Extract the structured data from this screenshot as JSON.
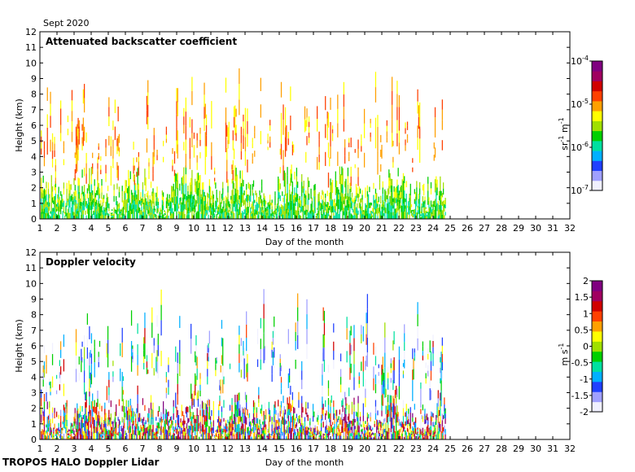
{
  "header": {
    "month_label": "Sept 2020"
  },
  "footer": {
    "instrument_label": "TROPOS HALO Doppler Lidar"
  },
  "chart_data": [
    {
      "type": "heatmap",
      "title": "Attenuated backscatter coefficient",
      "xlabel": "Day of the month",
      "ylabel": "Height (km)",
      "xlim": [
        1,
        32
      ],
      "ylim": [
        0,
        12
      ],
      "x_ticks": [
        "1",
        "2",
        "3",
        "4",
        "5",
        "6",
        "7",
        "8",
        "9",
        "10",
        "11",
        "12",
        "13",
        "14",
        "15",
        "16",
        "17",
        "18",
        "19",
        "20",
        "21",
        "22",
        "23",
        "24",
        "25",
        "26",
        "27",
        "28",
        "29",
        "30",
        "31",
        "32"
      ],
      "y_ticks": [
        "0",
        "1",
        "2",
        "3",
        "4",
        "5",
        "6",
        "7",
        "8",
        "9",
        "10",
        "11",
        "12"
      ],
      "data_extent_days": [
        1,
        24.7
      ],
      "colorbar": {
        "scale": "log",
        "range": [
          1e-07,
          0.0001
        ],
        "unit_text": "sr",
        "unit_sup1": "-1",
        "unit_mid": " m",
        "unit_sup2": "-1",
        "ticks": [
          {
            "value": 1e-07,
            "base": "10",
            "exp": "-7"
          },
          {
            "value": 1e-06,
            "base": "10",
            "exp": "-6"
          },
          {
            "value": 1e-05,
            "base": "10",
            "exp": "-5"
          },
          {
            "value": 0.0001,
            "base": "10",
            "exp": "-4"
          }
        ],
        "colors": [
          "#f0f0ff",
          "#a0a0ff",
          "#2040ff",
          "#00b0ff",
          "#00e0a0",
          "#00d000",
          "#a0e000",
          "#ffff00",
          "#ffa000",
          "#ff4000",
          "#d00000",
          "#a00060",
          "#800080"
        ]
      }
    },
    {
      "type": "heatmap",
      "title": "Doppler velocity",
      "xlabel": "Day of the month",
      "ylabel": "Height (km)",
      "xlim": [
        1,
        32
      ],
      "ylim": [
        0,
        12
      ],
      "x_ticks": [
        "1",
        "2",
        "3",
        "4",
        "5",
        "6",
        "7",
        "8",
        "9",
        "10",
        "11",
        "12",
        "13",
        "14",
        "15",
        "16",
        "17",
        "18",
        "19",
        "20",
        "21",
        "22",
        "23",
        "24",
        "25",
        "26",
        "27",
        "28",
        "29",
        "30",
        "31",
        "32"
      ],
      "y_ticks": [
        "0",
        "1",
        "2",
        "3",
        "4",
        "5",
        "6",
        "7",
        "8",
        "9",
        "10",
        "11",
        "12"
      ],
      "data_extent_days": [
        1,
        24.7
      ],
      "colorbar": {
        "scale": "linear",
        "range": [
          -2,
          2
        ],
        "unit_text": "m s",
        "unit_sup1": "-1",
        "ticks": [
          {
            "value": -2,
            "label": "-2"
          },
          {
            "value": -1.5,
            "label": "-1.5"
          },
          {
            "value": -1,
            "label": "-1"
          },
          {
            "value": -0.5,
            "label": "-0.5"
          },
          {
            "value": 0,
            "label": "0"
          },
          {
            "value": 0.5,
            "label": "0.5"
          },
          {
            "value": 1,
            "label": "1"
          },
          {
            "value": 1.5,
            "label": "1.5"
          },
          {
            "value": 2,
            "label": "2"
          }
        ],
        "colors": [
          "#f0f0ff",
          "#a0a0ff",
          "#2040ff",
          "#00b0ff",
          "#00e0a0",
          "#00d000",
          "#a0e000",
          "#ffff00",
          "#ffa000",
          "#ff4000",
          "#d00000",
          "#a00060",
          "#800080"
        ]
      }
    }
  ]
}
